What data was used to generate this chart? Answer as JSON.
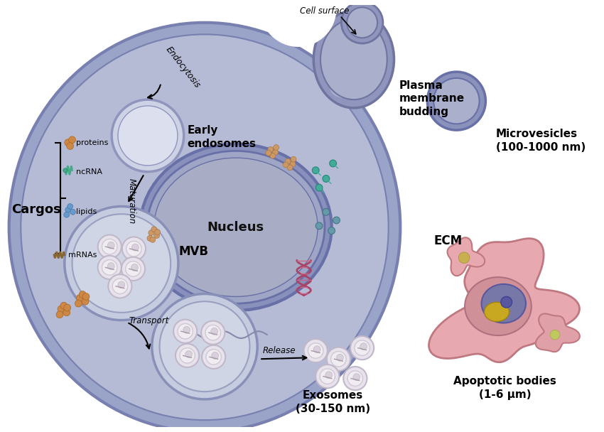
{
  "bg_color": "#ffffff",
  "cell_fill": "#9aa3c8",
  "cell_inner_fill": "#b5bbd5",
  "cell_edge": "#7880b0",
  "nucleus_fill": "#8890bb",
  "nucleus_inner": "#9ea5c5",
  "nucleus_edge": "#6870a8",
  "endosome_fill": "#cdd2e5",
  "endosome_edge": "#9095be",
  "mvb_fill": "#c5cce0",
  "mvb_edge": "#8890b8",
  "vesicle_fill": "#eae5ec",
  "vesicle_edge": "#c0b8c8",
  "microvesicle_fill": "#8a91bb",
  "microvesicle_inner": "#aab0cc",
  "microvesicle_edge": "#6870a8",
  "apoptotic_fill": "#e8a8b0",
  "apoptotic_edge": "#c07880",
  "bud_fill": "#9095be",
  "bud_edge": "#7075a0",
  "bud_inner": "#aab0cc",
  "labels": {
    "cell_surface": "Cell surface",
    "plasma_membrane": "Plasma\nmembrane\nbudding",
    "early_endosomes": "Early\nendosomes",
    "cargos": "Cargos",
    "proteins": "proteins",
    "ncRNA": "ncRNA",
    "lipids": "lipids",
    "mRNAs": "mRNAs",
    "maturation": "Maturation",
    "endocytosis": "Endocytosis",
    "mvb": "MVB",
    "transport": "Transport",
    "release": "Release",
    "nucleus": "Nucleus",
    "ecm": "ECM",
    "microvesicles": "Microvesicles\n(100-1000 nm)",
    "exosomes": "Exosomes\n(30-150 nm)",
    "apoptotic": "Apoptotic bodies\n(1-6 μm)"
  }
}
